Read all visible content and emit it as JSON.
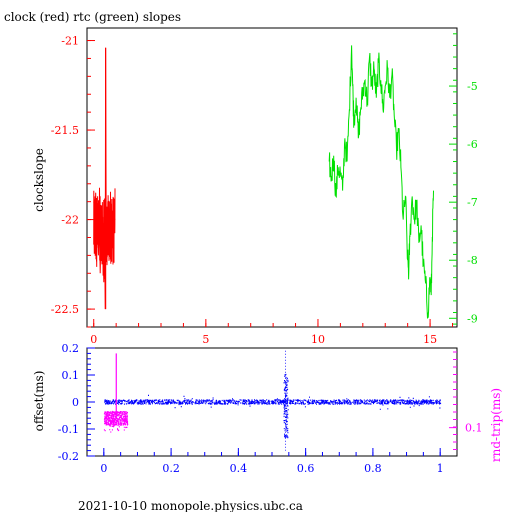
{
  "chart_data": [
    {
      "type": "line",
      "title": "clock (red) rtc (green) slopes",
      "ylabel": "clockslope",
      "xlim": [
        -0.3,
        16.2
      ],
      "ylim_left": [
        -22.6,
        -20.93
      ],
      "ylim_right": [
        -9.15,
        -4.0
      ],
      "x_ticks": [
        0,
        5,
        10,
        15
      ],
      "y_left_ticks": [
        -22.5,
        -22,
        -21.5,
        -21
      ],
      "y_right_ticks": [
        -9,
        -8,
        -7,
        -6,
        -5
      ],
      "series": [
        {
          "axis": "left",
          "color": "#ff0000",
          "x_start": 0.0,
          "x_end": 0.95,
          "points": [
            [
              0.0,
              -21.9
            ],
            [
              0.05,
              -22.05
            ],
            [
              0.09,
              -21.85
            ],
            [
              0.13,
              -22.15
            ],
            [
              0.17,
              -21.98
            ],
            [
              0.21,
              -22.2
            ],
            [
              0.25,
              -22.0
            ],
            [
              0.29,
              -22.3
            ],
            [
              0.33,
              -22.05
            ],
            [
              0.37,
              -22.25
            ],
            [
              0.41,
              -22.1
            ],
            [
              0.45,
              -22.35
            ],
            [
              0.48,
              -22.0
            ],
            [
              0.51,
              -22.5
            ],
            [
              0.53,
              -21.04
            ],
            [
              0.56,
              -22.2
            ],
            [
              0.6,
              -21.95
            ],
            [
              0.64,
              -22.2
            ],
            [
              0.68,
              -21.9
            ],
            [
              0.72,
              -22.15
            ],
            [
              0.76,
              -21.92
            ],
            [
              0.8,
              -22.1
            ],
            [
              0.84,
              -21.95
            ],
            [
              0.88,
              -22.05
            ],
            [
              0.92,
              -21.95
            ],
            [
              0.95,
              -22.0
            ]
          ]
        },
        {
          "axis": "right",
          "color": "#00e000",
          "points": [
            [
              10.5,
              -6.3
            ],
            [
              10.6,
              -6.6
            ],
            [
              10.7,
              -6.2
            ],
            [
              10.8,
              -6.9
            ],
            [
              10.9,
              -6.4
            ],
            [
              11.0,
              -6.5
            ],
            [
              11.1,
              -6.8
            ],
            [
              11.2,
              -5.9
            ],
            [
              11.3,
              -6.3
            ],
            [
              11.4,
              -5.4
            ],
            [
              11.5,
              -4.3
            ],
            [
              11.55,
              -5.0
            ],
            [
              11.6,
              -5.6
            ],
            [
              11.7,
              -5.2
            ],
            [
              11.8,
              -5.9
            ],
            [
              11.9,
              -5.4
            ],
            [
              12.0,
              -5.1
            ],
            [
              12.1,
              -4.9
            ],
            [
              12.2,
              -5.3
            ],
            [
              12.3,
              -4.5
            ],
            [
              12.4,
              -5.0
            ],
            [
              12.5,
              -4.7
            ],
            [
              12.6,
              -5.2
            ],
            [
              12.7,
              -4.6
            ],
            [
              12.8,
              -4.9
            ],
            [
              12.9,
              -5.4
            ],
            [
              13.0,
              -5.0
            ],
            [
              13.1,
              -4.7
            ],
            [
              13.2,
              -5.2
            ],
            [
              13.3,
              -4.8
            ],
            [
              13.4,
              -5.5
            ],
            [
              13.5,
              -6.1
            ],
            [
              13.6,
              -5.8
            ],
            [
              13.7,
              -6.4
            ],
            [
              13.8,
              -7.3
            ],
            [
              13.9,
              -6.9
            ],
            [
              14.0,
              -8.0
            ],
            [
              14.05,
              -8.2
            ],
            [
              14.1,
              -7.6
            ],
            [
              14.2,
              -6.9
            ],
            [
              14.3,
              -7.3
            ],
            [
              14.4,
              -7.0
            ],
            [
              14.5,
              -7.7
            ],
            [
              14.6,
              -7.4
            ],
            [
              14.7,
              -8.1
            ],
            [
              14.8,
              -8.4
            ],
            [
              14.9,
              -8.9
            ],
            [
              15.0,
              -8.3
            ],
            [
              15.05,
              -8.6
            ],
            [
              15.1,
              -7.6
            ],
            [
              15.15,
              -6.8
            ]
          ]
        }
      ]
    },
    {
      "type": "scatter",
      "ylabel_left": "offset(ms)",
      "ylabel_right": "rnd-trip(ms)",
      "footer": "2021-10-10  monopole.physics.ubc.ca",
      "xlim": [
        -0.05,
        1.05
      ],
      "ylim_left": [
        -0.2,
        0.2
      ],
      "x_ticks": [
        0,
        0.2,
        0.4,
        0.6,
        0.8,
        1
      ],
      "x_tick_labels": [
        "0",
        "0.2",
        "0.4",
        "0.6",
        "0.8",
        "1"
      ],
      "y_left_ticks": [
        0.2,
        0.1,
        0,
        -0.1,
        -0.2
      ],
      "y_left_tick_labels": [
        "0.2",
        "0.1",
        "0",
        "-0.1",
        "-0.2"
      ],
      "y_right_tick_label": "0.1",
      "y_right_tick_value": 0.1,
      "offset_series": {
        "color": "#0000ff",
        "baseline": 0.0,
        "noise": 0.008,
        "x_range": [
          0,
          1
        ],
        "spike_x": 0.54,
        "spike_range": [
          -0.18,
          0.19
        ]
      },
      "rndtrip_series": {
        "color": "#ff00ff",
        "x_range": [
          0,
          0.07
        ],
        "y_center_offset_units": -0.06,
        "y_spread_offset_units": 0.05,
        "spike_x": 0.037,
        "spike_top": 0.18
      }
    }
  ]
}
